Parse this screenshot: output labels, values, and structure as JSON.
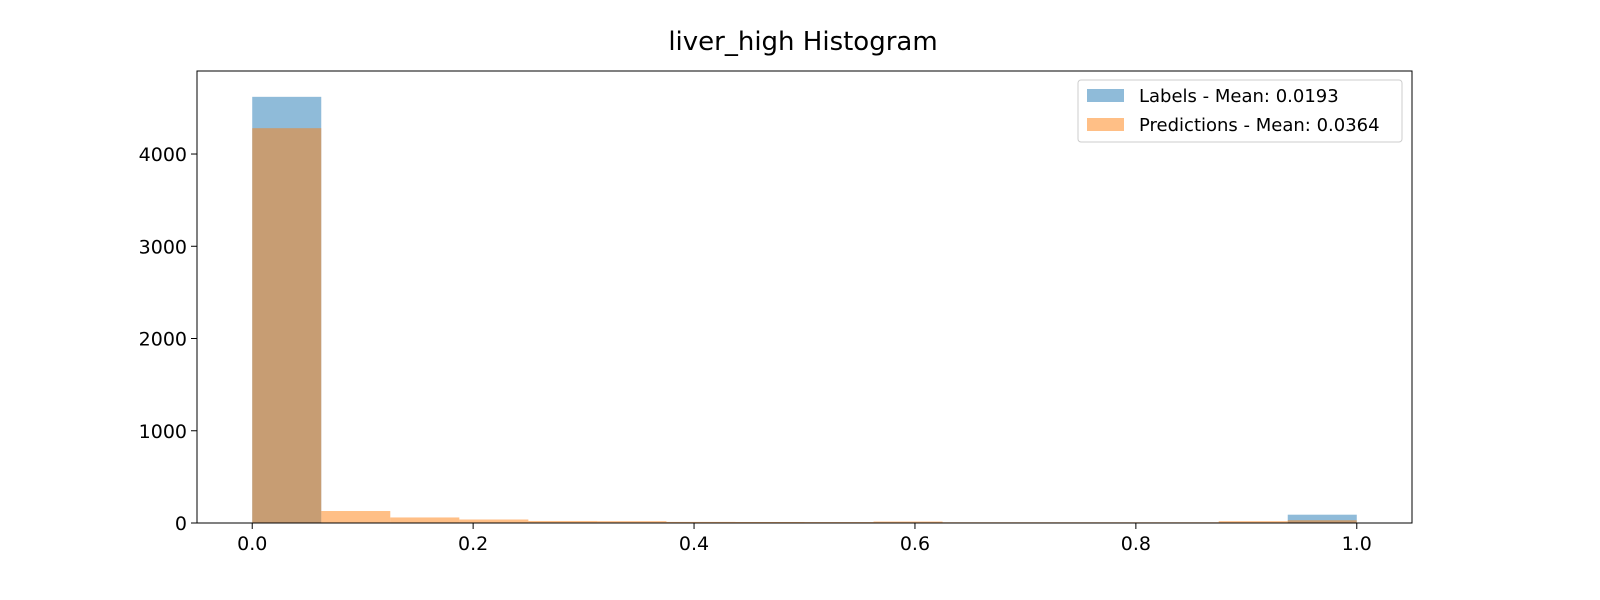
{
  "chart_data": {
    "type": "bar",
    "title": "liver_high Histogram",
    "xlabel": "",
    "ylabel": "",
    "xlim": [
      -0.05,
      1.05
    ],
    "ylim": [
      0,
      4900
    ],
    "xticks": [
      0.0,
      0.2,
      0.4,
      0.6,
      0.8,
      1.0
    ],
    "xtick_labels": [
      "0.0",
      "0.2",
      "0.4",
      "0.6",
      "0.8",
      "1.0"
    ],
    "yticks": [
      0,
      1000,
      2000,
      3000,
      4000
    ],
    "ytick_labels": [
      "0",
      "1000",
      "2000",
      "3000",
      "4000"
    ],
    "grid": false,
    "legend_position": "top-right",
    "series": [
      {
        "name": "Labels - Mean: 0.0193",
        "color": "#1f77b4",
        "alpha": 0.5,
        "bins": [
          {
            "x0": 0.0,
            "x1": 0.0625,
            "count": 4620
          },
          {
            "x0": 0.9375,
            "x1": 1.0,
            "count": 90
          }
        ]
      },
      {
        "name": "Predictions - Mean: 0.0364",
        "color": "#ff7f0e",
        "alpha": 0.5,
        "bins": [
          {
            "x0": 0.0,
            "x1": 0.0625,
            "count": 4280
          },
          {
            "x0": 0.0625,
            "x1": 0.125,
            "count": 130
          },
          {
            "x0": 0.125,
            "x1": 0.1875,
            "count": 60
          },
          {
            "x0": 0.1875,
            "x1": 0.25,
            "count": 38
          },
          {
            "x0": 0.25,
            "x1": 0.3125,
            "count": 22
          },
          {
            "x0": 0.3125,
            "x1": 0.375,
            "count": 20
          },
          {
            "x0": 0.375,
            "x1": 0.4375,
            "count": 12
          },
          {
            "x0": 0.4375,
            "x1": 0.5,
            "count": 11
          },
          {
            "x0": 0.5,
            "x1": 0.5625,
            "count": 10
          },
          {
            "x0": 0.5625,
            "x1": 0.625,
            "count": 16
          },
          {
            "x0": 0.625,
            "x1": 0.6875,
            "count": 8
          },
          {
            "x0": 0.6875,
            "x1": 0.75,
            "count": 8
          },
          {
            "x0": 0.75,
            "x1": 0.8125,
            "count": 8
          },
          {
            "x0": 0.8125,
            "x1": 0.875,
            "count": 8
          },
          {
            "x0": 0.875,
            "x1": 0.9375,
            "count": 20
          },
          {
            "x0": 0.9375,
            "x1": 1.0,
            "count": 30
          }
        ]
      }
    ]
  }
}
